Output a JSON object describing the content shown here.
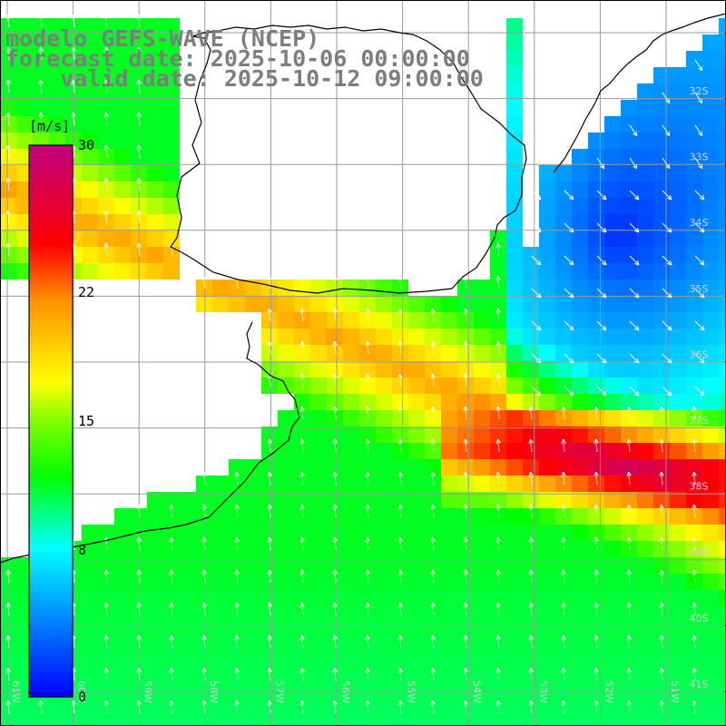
{
  "title": {
    "line1": "modelo GEFS-WAVE (NCEP)",
    "line2": "forecast date: 2025-10-06 00:00:00",
    "line3": "    valid date: 2025-10-12 09:00:00"
  },
  "colorbar": {
    "unit": "[m/s]",
    "ticks": [
      {
        "label": "30",
        "value": 30
      },
      {
        "label": "22",
        "value": 22
      },
      {
        "label": "15",
        "value": 15
      },
      {
        "label": "8",
        "value": 8
      },
      {
        "label": "0",
        "value": 0
      }
    ],
    "range": [
      0,
      30
    ],
    "colors": [
      "#0000ff",
      "#00a0ff",
      "#00ffff",
      "#00ff00",
      "#80ff00",
      "#ffff00",
      "#ffa000",
      "#ff0000",
      "#ff0080",
      "#c0007f"
    ]
  },
  "map": {
    "lat_labels": [
      "32S",
      "33S",
      "34S",
      "35S",
      "36S",
      "37S",
      "38S",
      "39S",
      "40S",
      "41S"
    ],
    "lon_labels": [
      "61W",
      "60W",
      "59W",
      "58W",
      "57W",
      "56W",
      "55W",
      "54W",
      "53W",
      "52W",
      "51W"
    ],
    "lon_range": [
      -61.5,
      -50.5
    ],
    "lat_range": [
      -41.5,
      -30.5
    ],
    "field": "wind speed",
    "arrow_color": "#ffffff",
    "coastline_color": "#000000",
    "grid_color": "#9a9a9a"
  }
}
